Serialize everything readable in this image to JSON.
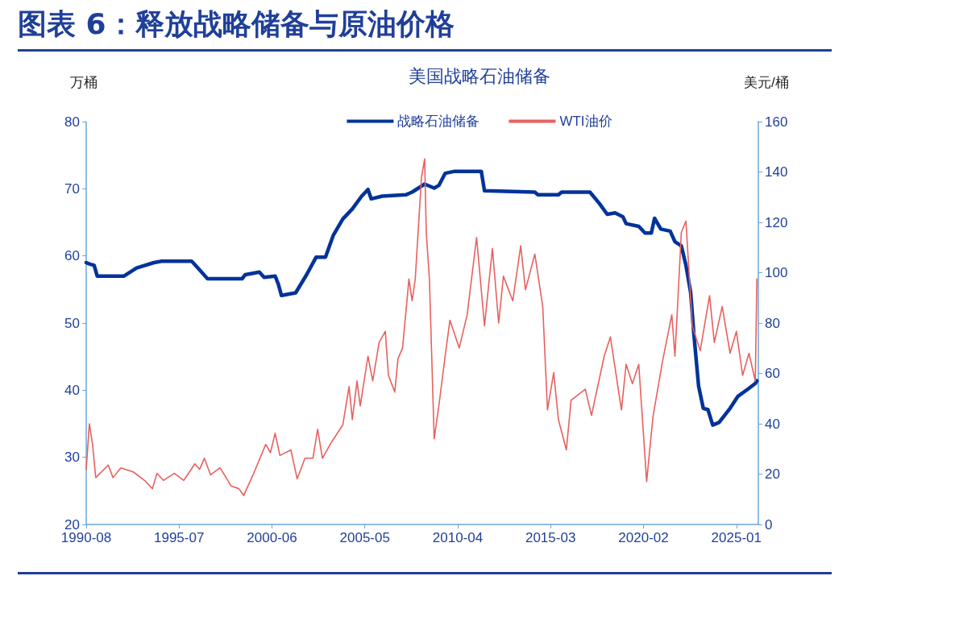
{
  "chart_data": {
    "type": "line",
    "title": "图表 6：释放战略储备与原油价格",
    "subtitle": "美国战略石油储备",
    "ylabel": "万桶",
    "y2label": "美元/桶",
    "xlim": [
      "1990-08",
      "2026-03"
    ],
    "xticks": [
      "1990-08",
      "1995-07",
      "2000-06",
      "2005-05",
      "2010-04",
      "2015-03",
      "2020-02",
      "2025-01"
    ],
    "ylim": [
      20,
      80
    ],
    "yticks": [
      20,
      30,
      40,
      50,
      60,
      70,
      80
    ],
    "y2lim": [
      0,
      160
    ],
    "y2ticks": [
      0,
      20,
      40,
      60,
      80,
      100,
      120,
      140,
      160
    ],
    "grid": false,
    "legend": "top",
    "marker": "none",
    "line_style": "solid",
    "series": [
      {
        "name": "战略石油储备",
        "color": "#003399",
        "x": [
          "1990-08",
          "1990-10",
          "1991-01",
          "1991-03",
          "1992-08",
          "1993-04",
          "1994-03",
          "1994-08",
          "1996-03",
          "1996-07",
          "1997-01",
          "1998-11",
          "1999-01",
          "1999-10",
          "2000-01",
          "2000-08",
          "2000-10",
          "2000-12",
          "2001-09",
          "2002-04",
          "2002-10",
          "2003-04",
          "2003-09",
          "2004-03",
          "2004-09",
          "2005-03",
          "2005-07",
          "2005-09",
          "2006-04",
          "2007-07",
          "2007-11",
          "2008-07",
          "2009-01",
          "2009-04",
          "2009-08",
          "2010-02",
          "2011-07",
          "2011-09",
          "2014-05",
          "2014-07",
          "2015-08",
          "2015-10",
          "2017-04",
          "2017-10",
          "2018-03",
          "2018-08",
          "2019-01",
          "2019-03",
          "2019-11",
          "2020-03",
          "2020-07",
          "2020-09",
          "2021-01",
          "2021-07",
          "2021-10",
          "2022-02",
          "2022-05",
          "2022-08",
          "2022-10",
          "2023-01",
          "2023-04",
          "2023-07",
          "2023-10",
          "2024-02",
          "2024-09",
          "2025-02",
          "2025-08",
          "2026-01",
          "2026-02"
        ],
        "values": [
          59.0,
          58.8,
          58.6,
          57.0,
          57.0,
          58.2,
          59.0,
          59.2,
          59.2,
          58.2,
          56.6,
          56.6,
          57.2,
          57.6,
          56.8,
          57.0,
          55.8,
          54.1,
          54.5,
          57.2,
          59.8,
          59.8,
          63.1,
          65.5,
          67.0,
          68.9,
          69.9,
          68.5,
          68.9,
          69.1,
          69.5,
          70.7,
          70.1,
          70.5,
          72.3,
          72.6,
          72.6,
          69.7,
          69.5,
          69.1,
          69.1,
          69.5,
          69.5,
          67.8,
          66.2,
          66.4,
          65.8,
          64.8,
          64.4,
          63.4,
          63.4,
          65.6,
          64.0,
          63.7,
          62.1,
          61.5,
          58.6,
          54.5,
          48.4,
          40.6,
          37.3,
          37.1,
          34.8,
          35.2,
          37.3,
          39.1,
          40.1,
          41.0,
          41.4
        ]
      },
      {
        "name": "WTI油价",
        "color": "#e8605f",
        "axis": "y2",
        "x": [
          "1990-08",
          "1990-10",
          "1990-12",
          "1991-02",
          "1991-10",
          "1992-01",
          "1992-06",
          "1993-02",
          "1993-09",
          "1994-02",
          "1994-05",
          "1994-09",
          "1995-04",
          "1995-10",
          "1996-05",
          "1996-08",
          "1996-11",
          "1997-03",
          "1997-09",
          "1998-04",
          "1998-09",
          "1998-12",
          "1999-06",
          "2000-02",
          "2000-05",
          "2000-08",
          "2000-11",
          "2001-06",
          "2001-10",
          "2002-03",
          "2002-08",
          "2002-11",
          "2003-02",
          "2003-08",
          "2004-03",
          "2004-07",
          "2004-09",
          "2004-12",
          "2005-02",
          "2005-07",
          "2005-10",
          "2006-02",
          "2006-06",
          "2006-08",
          "2006-12",
          "2007-02",
          "2007-05",
          "2007-09",
          "2007-11",
          "2008-01",
          "2008-05",
          "2008-07",
          "2008-08",
          "2008-10",
          "2009-01",
          "2009-04",
          "2009-08",
          "2009-11",
          "2010-05",
          "2010-10",
          "2011-04",
          "2011-09",
          "2012-02",
          "2012-06",
          "2012-09",
          "2013-03",
          "2013-08",
          "2013-11",
          "2014-05",
          "2014-10",
          "2015-01",
          "2015-05",
          "2015-08",
          "2016-01",
          "2016-04",
          "2017-01",
          "2017-05",
          "2018-01",
          "2018-05",
          "2018-12",
          "2019-03",
          "2019-07",
          "2019-11",
          "2020-04",
          "2020-08",
          "2021-02",
          "2021-08",
          "2021-10",
          "2022-02",
          "2022-05",
          "2022-09",
          "2023-02",
          "2023-08",
          "2023-11",
          "2024-04",
          "2024-09",
          "2025-01",
          "2025-05",
          "2025-09",
          "2026-01",
          "2026-02"
        ],
        "values": [
          21.9,
          40.0,
          31.8,
          18.6,
          23.6,
          18.6,
          22.5,
          20.8,
          17.5,
          14.2,
          20.3,
          17.5,
          20.3,
          17.5,
          24.1,
          21.9,
          26.3,
          19.7,
          22.5,
          15.3,
          14.2,
          11.5,
          19.7,
          31.8,
          28.5,
          36.2,
          27.4,
          29.6,
          18.1,
          26.3,
          26.3,
          37.8,
          26.3,
          32.9,
          39.5,
          54.8,
          41.6,
          57.0,
          47.1,
          66.8,
          57.0,
          72.3,
          76.7,
          59.2,
          52.6,
          65.8,
          70.1,
          97.5,
          88.8,
          97.5,
          138,
          145.2,
          116,
          97.5,
          34.0,
          47.1,
          66.8,
          81.1,
          70.1,
          83.3,
          114,
          78.9,
          109.6,
          80.0,
          98.6,
          88.8,
          110.7,
          93.2,
          107.4,
          86.6,
          45.5,
          60.3,
          41.6,
          29.6,
          49.3,
          53.7,
          43.3,
          66.8,
          74.5,
          45.5,
          63.6,
          55.9,
          63.6,
          17.0,
          42.7,
          64.7,
          83.3,
          66.8,
          116,
          120.5,
          78.9,
          69.0,
          90.9,
          72.3,
          86.6,
          68.0,
          76.7,
          59.2,
          68.0,
          57.0,
          97.5
        ]
      }
    ]
  }
}
